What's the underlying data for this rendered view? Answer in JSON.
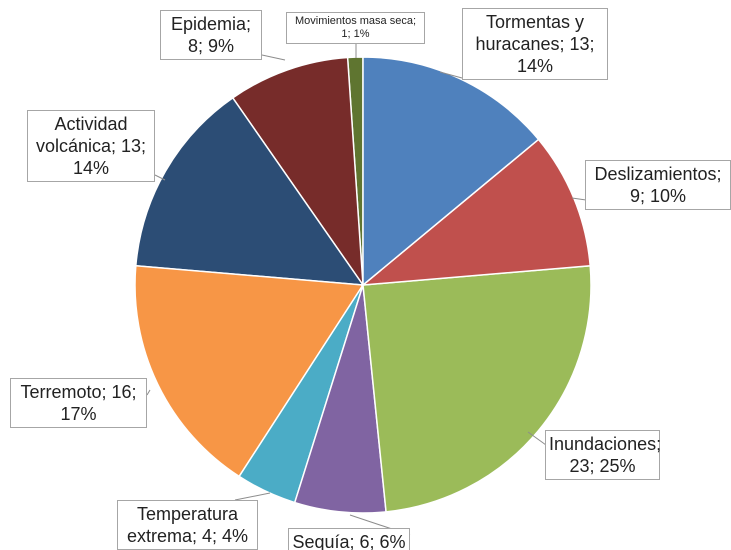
{
  "chart_data": {
    "type": "pie",
    "categories": [
      "Tormentas y huracanes",
      "Deslizamientos",
      "Inundaciones",
      "Sequía",
      "Temperatura extrema",
      "Terremoto",
      "Actividad volcánica",
      "Epidemia",
      "Movimientos masa seca"
    ],
    "values": [
      13,
      9,
      23,
      6,
      4,
      16,
      13,
      8,
      1
    ],
    "value_labels": [
      "Tormentas y huracanes; 13; 14%",
      "Deslizamientos; 9; 10%",
      "Inundaciones; 23; 25%",
      "Sequía; 6; 6%",
      "Temperatura extrema; 4; 4%",
      "Terremoto; 16; 17%",
      "Actividad volcánica; 13; 14%",
      "Epidemia; 8; 9%",
      "Movimientos masa seca; 1; 1%"
    ],
    "colors": [
      "#4f81bd",
      "#c0504d",
      "#9bbb59",
      "#8064a2",
      "#4bacc6",
      "#f79646",
      "#2c4d75",
      "#772c2a",
      "#5f7530"
    ]
  }
}
